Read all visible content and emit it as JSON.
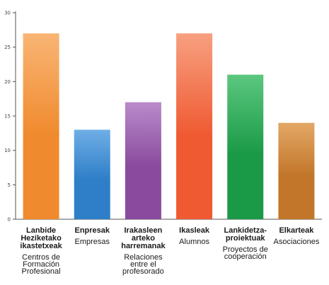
{
  "chart_data": {
    "type": "bar",
    "ylim": [
      0,
      30
    ],
    "yticks": [
      0,
      5,
      10,
      15,
      20,
      25,
      30
    ],
    "grid": false,
    "categories": [
      {
        "basque": [
          "Lanbide",
          "Heziketako",
          "ikastetxeak"
        ],
        "spanish": [
          "Centros de",
          "Formación",
          "Profesional"
        ],
        "color": "#f08a2e",
        "color_light": "#f9b574",
        "value": 27
      },
      {
        "basque": [
          "Enpresak"
        ],
        "spanish": [
          "Empresas"
        ],
        "color": "#2f7fc8",
        "color_light": "#6faee6",
        "value": 13
      },
      {
        "basque": [
          "Irakasleen",
          "arteko",
          "harremanak"
        ],
        "spanish": [
          "Relaciones",
          "entre el",
          "profesorado"
        ],
        "color": "#8a4a9e",
        "color_light": "#b98bcb",
        "value": 17
      },
      {
        "basque": [
          "Ikasleak"
        ],
        "spanish": [
          "Alumnos"
        ],
        "color": "#ef5a32",
        "color_light": "#f7a080",
        "value": 27
      },
      {
        "basque": [
          "Lankidetza-",
          "proiektuak"
        ],
        "spanish": [
          "Proyectos de",
          "cooperación"
        ],
        "color": "#1a9a47",
        "color_light": "#5cc77f",
        "value": 21
      },
      {
        "basque": [
          "Elkarteak"
        ],
        "spanish": [
          "Asociaciones"
        ],
        "color": "#c2762a",
        "color_light": "#e3a866",
        "value": 14
      }
    ]
  }
}
